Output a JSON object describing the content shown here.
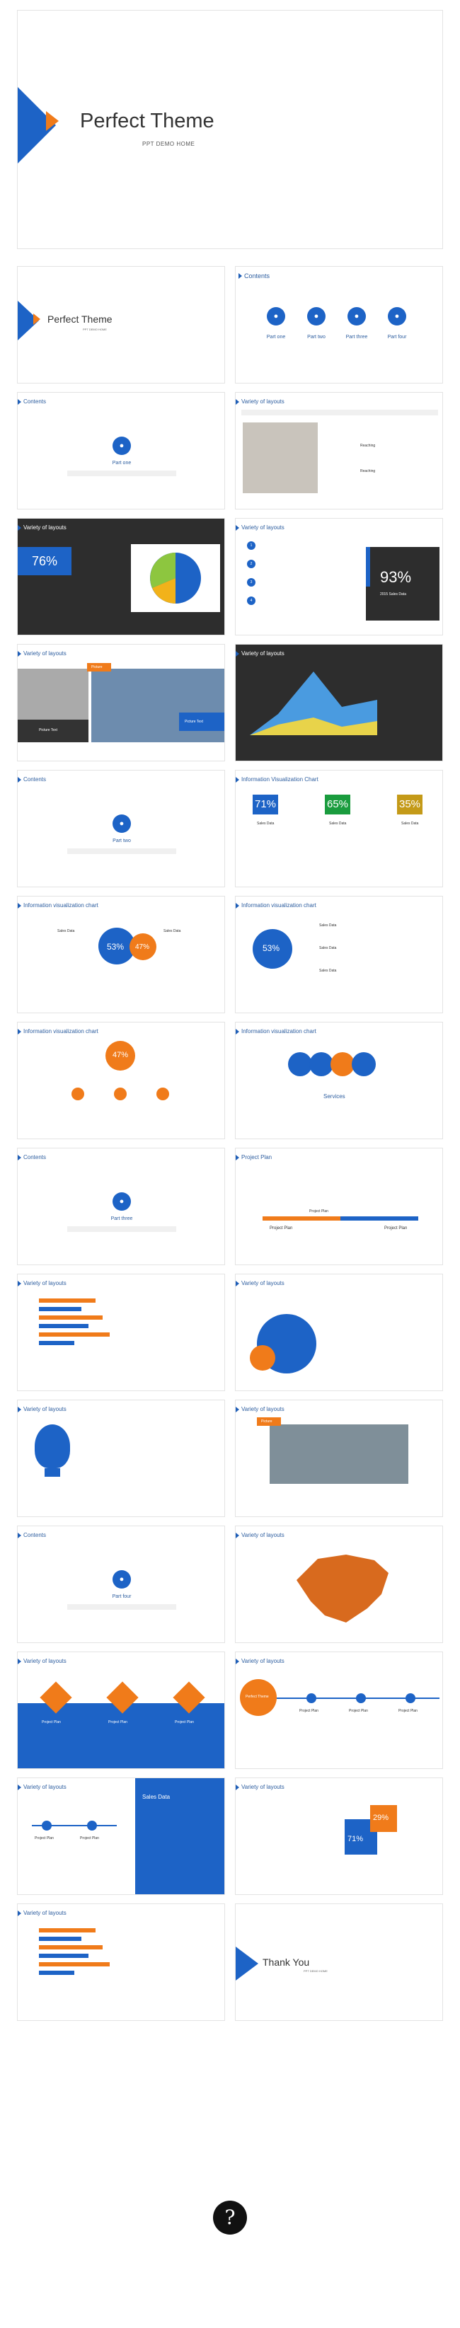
{
  "cover": {
    "title": "Perfect Theme",
    "subtitle": "PPT DEMO HOME"
  },
  "slide_small_cover": {
    "title": "Perfect Theme",
    "subtitle": "PPT DEMO HOME"
  },
  "contents": {
    "title": "Contents",
    "parts": [
      "Part one",
      "Part two",
      "Part three",
      "Part four"
    ]
  },
  "titles": {
    "contents": "Contents",
    "variety": "Variety of layouts",
    "info_chart": "Information Visualization Chart",
    "info_chart_lc": "Information visualization chart",
    "project_plan": "Project Plan"
  },
  "part_labels": {
    "one": "Part one",
    "two": "Part two",
    "three": "Part three",
    "four": "Part four"
  },
  "variety_items": {
    "reaching": "Reaching",
    "reaching2": "Reaching"
  },
  "stats": {
    "pct76": "76%",
    "pct93": "93%",
    "sales_data_2015": "2015 Sales Data",
    "pct71": "71%",
    "pct65": "65%",
    "pct35": "35%",
    "sales_data": "Sales Data",
    "pct53": "53%",
    "pct47": "47%",
    "pct29": "29%"
  },
  "picture_labels": {
    "picture": "Picture",
    "picture_text": "Picture Text",
    "picture_text2": "Picture Text"
  },
  "services": "Services",
  "plan_labels": {
    "project_plan": "Project Plan",
    "perfect_theme": "Perfect Theme"
  },
  "thank_you": {
    "title": "Thank You",
    "subtitle": "PPT DEMO HOME"
  },
  "logo_glyph": "?",
  "colors": {
    "blue": "#1d63c6",
    "orange": "#f07b1a",
    "green": "#1a9c3e",
    "gold": "#c49a18"
  }
}
